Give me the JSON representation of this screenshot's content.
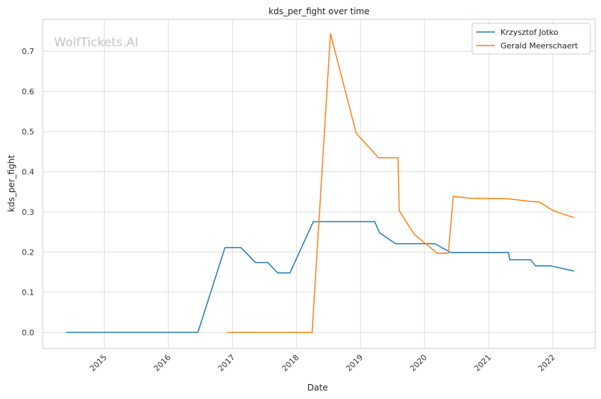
{
  "chart_data": {
    "type": "line",
    "title": "kds_per_fight over time",
    "xlabel": "Date",
    "ylabel": "kds_per_fight",
    "watermark": "WolfTickets.AI",
    "xlim": [
      "2014-01-15",
      "2022-09-01"
    ],
    "ylim": [
      -0.04,
      0.78
    ],
    "x_ticks": [
      {
        "date": "2015-01-01",
        "label": "2015"
      },
      {
        "date": "2016-01-01",
        "label": "2016"
      },
      {
        "date": "2017-01-01",
        "label": "2017"
      },
      {
        "date": "2018-01-01",
        "label": "2018"
      },
      {
        "date": "2019-01-01",
        "label": "2019"
      },
      {
        "date": "2020-01-01",
        "label": "2020"
      },
      {
        "date": "2021-01-01",
        "label": "2021"
      },
      {
        "date": "2022-01-01",
        "label": "2022"
      }
    ],
    "y_ticks": [
      {
        "value": 0.0,
        "label": "0.0"
      },
      {
        "value": 0.1,
        "label": "0.1"
      },
      {
        "value": 0.2,
        "label": "0.2"
      },
      {
        "value": 0.3,
        "label": "0.3"
      },
      {
        "value": 0.4,
        "label": "0.4"
      },
      {
        "value": 0.5,
        "label": "0.5"
      },
      {
        "value": 0.6,
        "label": "0.6"
      },
      {
        "value": 0.7,
        "label": "0.7"
      }
    ],
    "grid": true,
    "legend_position": "top-right",
    "series": [
      {
        "name": "Krzysztof Jotko",
        "color": "#1f77b4",
        "points": [
          {
            "x": "2014-05-31",
            "y": 0.0
          },
          {
            "x": "2016-06-18",
            "y": 0.0
          },
          {
            "x": "2016-11-19",
            "y": 0.211
          },
          {
            "x": "2017-02-19",
            "y": 0.211
          },
          {
            "x": "2017-05-13",
            "y": 0.174
          },
          {
            "x": "2017-07-22",
            "y": 0.174
          },
          {
            "x": "2017-09-16",
            "y": 0.148
          },
          {
            "x": "2017-11-25",
            "y": 0.148
          },
          {
            "x": "2018-04-07",
            "y": 0.276
          },
          {
            "x": "2019-03-23",
            "y": 0.276
          },
          {
            "x": "2019-04-20",
            "y": 0.248
          },
          {
            "x": "2019-07-20",
            "y": 0.221
          },
          {
            "x": "2020-02-29",
            "y": 0.221
          },
          {
            "x": "2020-05-30",
            "y": 0.199
          },
          {
            "x": "2021-04-24",
            "y": 0.199
          },
          {
            "x": "2021-05-01",
            "y": 0.181
          },
          {
            "x": "2021-08-28",
            "y": 0.181
          },
          {
            "x": "2021-09-25",
            "y": 0.166
          },
          {
            "x": "2021-12-18",
            "y": 0.166
          },
          {
            "x": "2022-04-30",
            "y": 0.153
          }
        ]
      },
      {
        "name": "Gerald Meerschaert",
        "color": "#ff7f0e",
        "points": [
          {
            "x": "2016-12-03",
            "y": 0.0
          },
          {
            "x": "2018-03-31",
            "y": 0.0
          },
          {
            "x": "2018-07-14",
            "y": 0.744
          },
          {
            "x": "2018-12-08",
            "y": 0.496
          },
          {
            "x": "2019-04-13",
            "y": 0.435
          },
          {
            "x": "2019-08-03",
            "y": 0.435
          },
          {
            "x": "2019-08-10",
            "y": 0.303
          },
          {
            "x": "2019-11-02",
            "y": 0.245
          },
          {
            "x": "2020-03-14",
            "y": 0.197
          },
          {
            "x": "2020-05-16",
            "y": 0.197
          },
          {
            "x": "2020-06-13",
            "y": 0.339
          },
          {
            "x": "2020-09-19",
            "y": 0.334
          },
          {
            "x": "2021-04-17",
            "y": 0.333
          },
          {
            "x": "2021-08-28",
            "y": 0.326
          },
          {
            "x": "2021-10-16",
            "y": 0.325
          },
          {
            "x": "2022-01-01",
            "y": 0.304
          },
          {
            "x": "2022-04-30",
            "y": 0.286
          }
        ]
      }
    ]
  }
}
